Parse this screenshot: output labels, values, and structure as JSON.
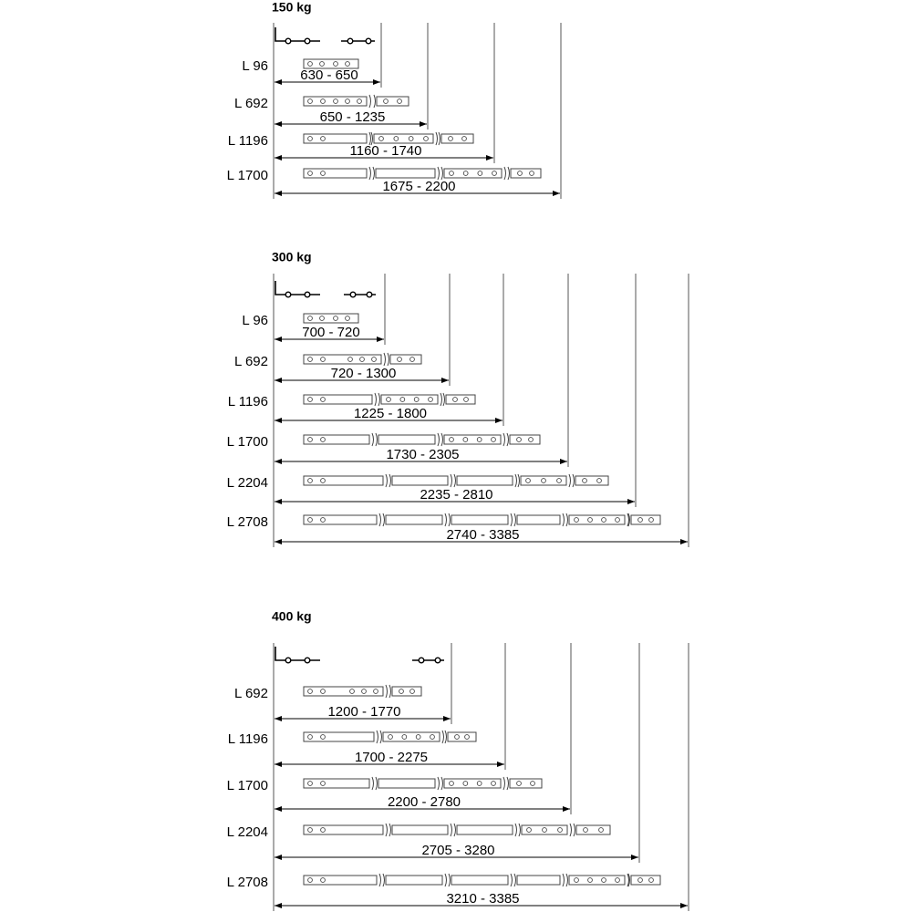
{
  "colors": {
    "line": "#444444",
    "text": "#000000",
    "background": "#ffffff"
  },
  "icons": {
    "rail_symbol": "slide-rail-symbol-icon",
    "rail_graphic": "telescopic-rail-icon",
    "dimension": "double-arrow-icon"
  },
  "panels": [
    {
      "title": "150 kg",
      "rows": [
        {
          "label": "L 96",
          "range": "630 - 650",
          "segments": 1
        },
        {
          "label": "L 692",
          "range": "650 - 1235",
          "segments": 2
        },
        {
          "label": "L 1196",
          "range": "1160 - 1740",
          "segments": 3
        },
        {
          "label": "L 1700",
          "range": "1675 - 2200",
          "segments": 4
        }
      ]
    },
    {
      "title": "300 kg",
      "rows": [
        {
          "label": "L 96",
          "range": "700 - 720",
          "segments": 1
        },
        {
          "label": "L 692",
          "range": "720 - 1300",
          "segments": 2
        },
        {
          "label": "L 1196",
          "range": "1225 - 1800",
          "segments": 3
        },
        {
          "label": "L 1700",
          "range": "1730 - 2305",
          "segments": 4
        },
        {
          "label": "L 2204",
          "range": "2235 - 2810",
          "segments": 5
        },
        {
          "label": "L 2708",
          "range": "2740 - 3385",
          "segments": 6
        }
      ]
    },
    {
      "title": "400 kg",
      "rows": [
        {
          "label": "L 692",
          "range": "1200 - 1770",
          "segments": 2
        },
        {
          "label": "L 1196",
          "range": "1700 - 2275",
          "segments": 3
        },
        {
          "label": "L 1700",
          "range": "2200 - 2780",
          "segments": 4
        },
        {
          "label": "L 2204",
          "range": "2705 - 3280",
          "segments": 5
        },
        {
          "label": "L 2708",
          "range": "3210 - 3385",
          "segments": 6
        }
      ]
    }
  ]
}
